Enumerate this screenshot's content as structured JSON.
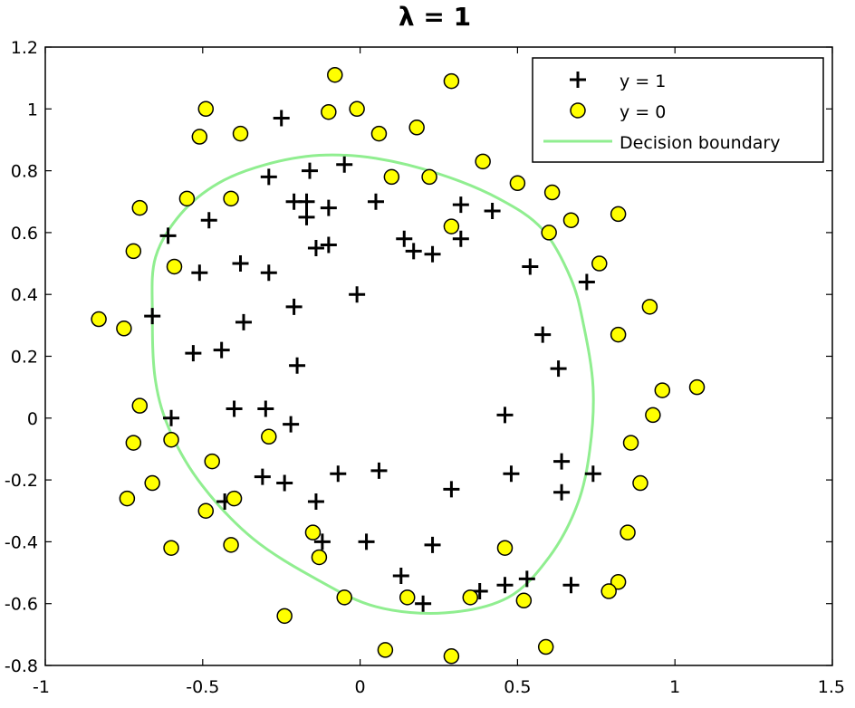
{
  "chart_data": {
    "type": "scatter",
    "title": "λ = 1",
    "xlabel": "",
    "ylabel": "",
    "xlim": [
      -1,
      1.5
    ],
    "ylim": [
      -0.8,
      1.2
    ],
    "xticks": [
      "-1",
      "-0.5",
      "0",
      "0.5",
      "1",
      "1.5"
    ],
    "yticks": [
      "-0.8",
      "-0.6",
      "-0.4",
      "-0.2",
      "0",
      "0.2",
      "0.4",
      "0.6",
      "0.8",
      "1",
      "1.2"
    ],
    "xtick_values": [
      -1,
      -0.5,
      0,
      0.5,
      1,
      1.5
    ],
    "ytick_values": [
      -0.8,
      -0.6,
      -0.4,
      -0.2,
      0,
      0.2,
      0.4,
      0.6,
      0.8,
      1,
      1.2
    ],
    "grid": false,
    "legend_position": "top-right",
    "legend": [
      "y = 1",
      "y = 0",
      "Decision boundary"
    ],
    "series": [
      {
        "name": "y = 1",
        "marker": "plus",
        "color": "#000000",
        "points": [
          [
            -0.25,
            0.97
          ],
          [
            -0.29,
            0.78
          ],
          [
            -0.16,
            0.8
          ],
          [
            -0.05,
            0.82
          ],
          [
            -0.21,
            0.7
          ],
          [
            -0.17,
            0.7
          ],
          [
            -0.1,
            0.68
          ],
          [
            -0.17,
            0.65
          ],
          [
            0.05,
            0.7
          ],
          [
            0.32,
            0.69
          ],
          [
            0.42,
            0.67
          ],
          [
            -0.61,
            0.59
          ],
          [
            -0.48,
            0.64
          ],
          [
            -0.51,
            0.47
          ],
          [
            -0.38,
            0.5
          ],
          [
            -0.29,
            0.47
          ],
          [
            -0.14,
            0.55
          ],
          [
            -0.1,
            0.56
          ],
          [
            0.14,
            0.58
          ],
          [
            0.17,
            0.54
          ],
          [
            0.23,
            0.53
          ],
          [
            0.32,
            0.58
          ],
          [
            0.54,
            0.49
          ],
          [
            0.72,
            0.44
          ],
          [
            -0.66,
            0.33
          ],
          [
            -0.37,
            0.31
          ],
          [
            -0.21,
            0.36
          ],
          [
            -0.01,
            0.4
          ],
          [
            -0.53,
            0.21
          ],
          [
            -0.44,
            0.22
          ],
          [
            -0.2,
            0.17
          ],
          [
            0.58,
            0.27
          ],
          [
            0.63,
            0.16
          ],
          [
            -0.6,
            0.0
          ],
          [
            -0.4,
            0.03
          ],
          [
            -0.3,
            0.03
          ],
          [
            -0.22,
            -0.02
          ],
          [
            0.46,
            0.01
          ],
          [
            -0.31,
            -0.19
          ],
          [
            -0.24,
            -0.21
          ],
          [
            -0.07,
            -0.18
          ],
          [
            0.06,
            -0.17
          ],
          [
            0.48,
            -0.18
          ],
          [
            0.64,
            -0.14
          ],
          [
            0.74,
            -0.18
          ],
          [
            0.29,
            -0.23
          ],
          [
            0.64,
            -0.24
          ],
          [
            -0.43,
            -0.27
          ],
          [
            -0.14,
            -0.27
          ],
          [
            -0.12,
            -0.4
          ],
          [
            0.02,
            -0.4
          ],
          [
            0.23,
            -0.41
          ],
          [
            0.13,
            -0.51
          ],
          [
            0.2,
            -0.6
          ],
          [
            0.38,
            -0.56
          ],
          [
            0.46,
            -0.54
          ],
          [
            0.53,
            -0.52
          ],
          [
            0.67,
            -0.54
          ]
        ]
      },
      {
        "name": "y = 0",
        "marker": "circle",
        "color": "#ffff00",
        "points": [
          [
            -0.08,
            1.11
          ],
          [
            0.29,
            1.09
          ],
          [
            -0.49,
            1.0
          ],
          [
            -0.1,
            0.99
          ],
          [
            -0.01,
            1.0
          ],
          [
            -0.51,
            0.91
          ],
          [
            -0.38,
            0.92
          ],
          [
            0.06,
            0.92
          ],
          [
            0.18,
            0.94
          ],
          [
            0.39,
            0.83
          ],
          [
            0.1,
            0.78
          ],
          [
            0.22,
            0.78
          ],
          [
            0.5,
            0.76
          ],
          [
            0.61,
            0.73
          ],
          [
            -0.55,
            0.71
          ],
          [
            -0.41,
            0.71
          ],
          [
            -0.7,
            0.68
          ],
          [
            0.29,
            0.62
          ],
          [
            0.67,
            0.64
          ],
          [
            0.82,
            0.66
          ],
          [
            -0.72,
            0.54
          ],
          [
            -0.59,
            0.49
          ],
          [
            0.6,
            0.6
          ],
          [
            0.76,
            0.5
          ],
          [
            -0.83,
            0.32
          ],
          [
            -0.75,
            0.29
          ],
          [
            0.92,
            0.36
          ],
          [
            0.82,
            0.27
          ],
          [
            1.07,
            0.1
          ],
          [
            0.96,
            0.09
          ],
          [
            0.93,
            0.01
          ],
          [
            -0.7,
            0.04
          ],
          [
            -0.72,
            -0.08
          ],
          [
            -0.6,
            -0.07
          ],
          [
            -0.29,
            -0.06
          ],
          [
            0.86,
            -0.08
          ],
          [
            -0.47,
            -0.14
          ],
          [
            -0.66,
            -0.21
          ],
          [
            -0.74,
            -0.26
          ],
          [
            -0.4,
            -0.26
          ],
          [
            0.89,
            -0.21
          ],
          [
            -0.49,
            -0.3
          ],
          [
            -0.15,
            -0.37
          ],
          [
            0.85,
            -0.37
          ],
          [
            -0.6,
            -0.42
          ],
          [
            -0.41,
            -0.41
          ],
          [
            -0.13,
            -0.45
          ],
          [
            0.46,
            -0.42
          ],
          [
            0.82,
            -0.53
          ],
          [
            0.79,
            -0.56
          ],
          [
            -0.05,
            -0.58
          ],
          [
            0.15,
            -0.58
          ],
          [
            0.35,
            -0.58
          ],
          [
            0.52,
            -0.59
          ],
          [
            -0.24,
            -0.64
          ],
          [
            0.08,
            -0.75
          ],
          [
            0.29,
            -0.77
          ],
          [
            0.59,
            -0.74
          ]
        ]
      },
      {
        "name": "Decision boundary",
        "marker": "line",
        "color": "#90ee90",
        "points": [
          [
            -0.13,
            0.85
          ],
          [
            0.05,
            0.84
          ],
          [
            0.25,
            0.79
          ],
          [
            0.44,
            0.71
          ],
          [
            0.58,
            0.61
          ],
          [
            0.67,
            0.45
          ],
          [
            0.71,
            0.3
          ],
          [
            0.74,
            0.1
          ],
          [
            0.73,
            -0.1
          ],
          [
            0.69,
            -0.28
          ],
          [
            0.6,
            -0.45
          ],
          [
            0.47,
            -0.58
          ],
          [
            0.27,
            -0.63
          ],
          [
            0.05,
            -0.61
          ],
          [
            -0.14,
            -0.52
          ],
          [
            -0.34,
            -0.39
          ],
          [
            -0.5,
            -0.22
          ],
          [
            -0.6,
            -0.05
          ],
          [
            -0.65,
            0.12
          ],
          [
            -0.66,
            0.34
          ],
          [
            -0.65,
            0.52
          ],
          [
            -0.57,
            0.66
          ],
          [
            -0.45,
            0.76
          ],
          [
            -0.3,
            0.82
          ],
          [
            -0.13,
            0.85
          ]
        ]
      }
    ]
  }
}
